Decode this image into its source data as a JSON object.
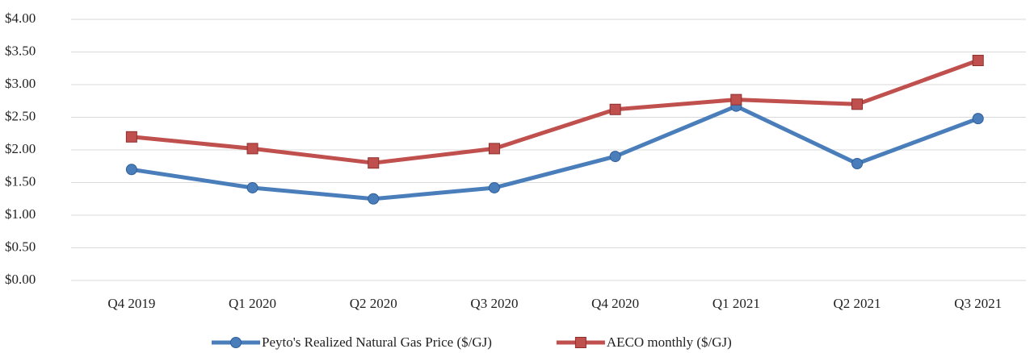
{
  "chart_data": {
    "type": "line",
    "categories": [
      "Q4 2019",
      "Q1 2020",
      "Q2 2020",
      "Q3 2020",
      "Q4 2020",
      "Q1 2021",
      "Q2 2021",
      "Q3 2021"
    ],
    "series": [
      {
        "name": "Peyto's Realized Natural Gas Price ($/GJ)",
        "color": "#4a7ebb",
        "marker": "circle",
        "values": [
          1.7,
          1.42,
          1.25,
          1.42,
          1.9,
          2.67,
          1.79,
          2.48
        ]
      },
      {
        "name": "AECO monthly ($/GJ)",
        "color": "#c0504d",
        "marker": "square",
        "values": [
          2.2,
          2.02,
          1.8,
          2.02,
          2.62,
          2.77,
          2.7,
          3.37
        ]
      }
    ],
    "ylim": [
      0,
      4
    ],
    "yticks": [
      {
        "value": 0,
        "label": "$0.00"
      },
      {
        "value": 0.5,
        "label": "$0.50"
      },
      {
        "value": 1,
        "label": "$1.00"
      },
      {
        "value": 1.5,
        "label": "$1.50"
      },
      {
        "value": 2,
        "label": "$2.00"
      },
      {
        "value": 2.5,
        "label": "$2.50"
      },
      {
        "value": 3,
        "label": "$3.00"
      },
      {
        "value": 3.5,
        "label": "$3.50"
      },
      {
        "value": 4,
        "label": "$4.00"
      }
    ],
    "grid": true,
    "legend": "bottom"
  }
}
